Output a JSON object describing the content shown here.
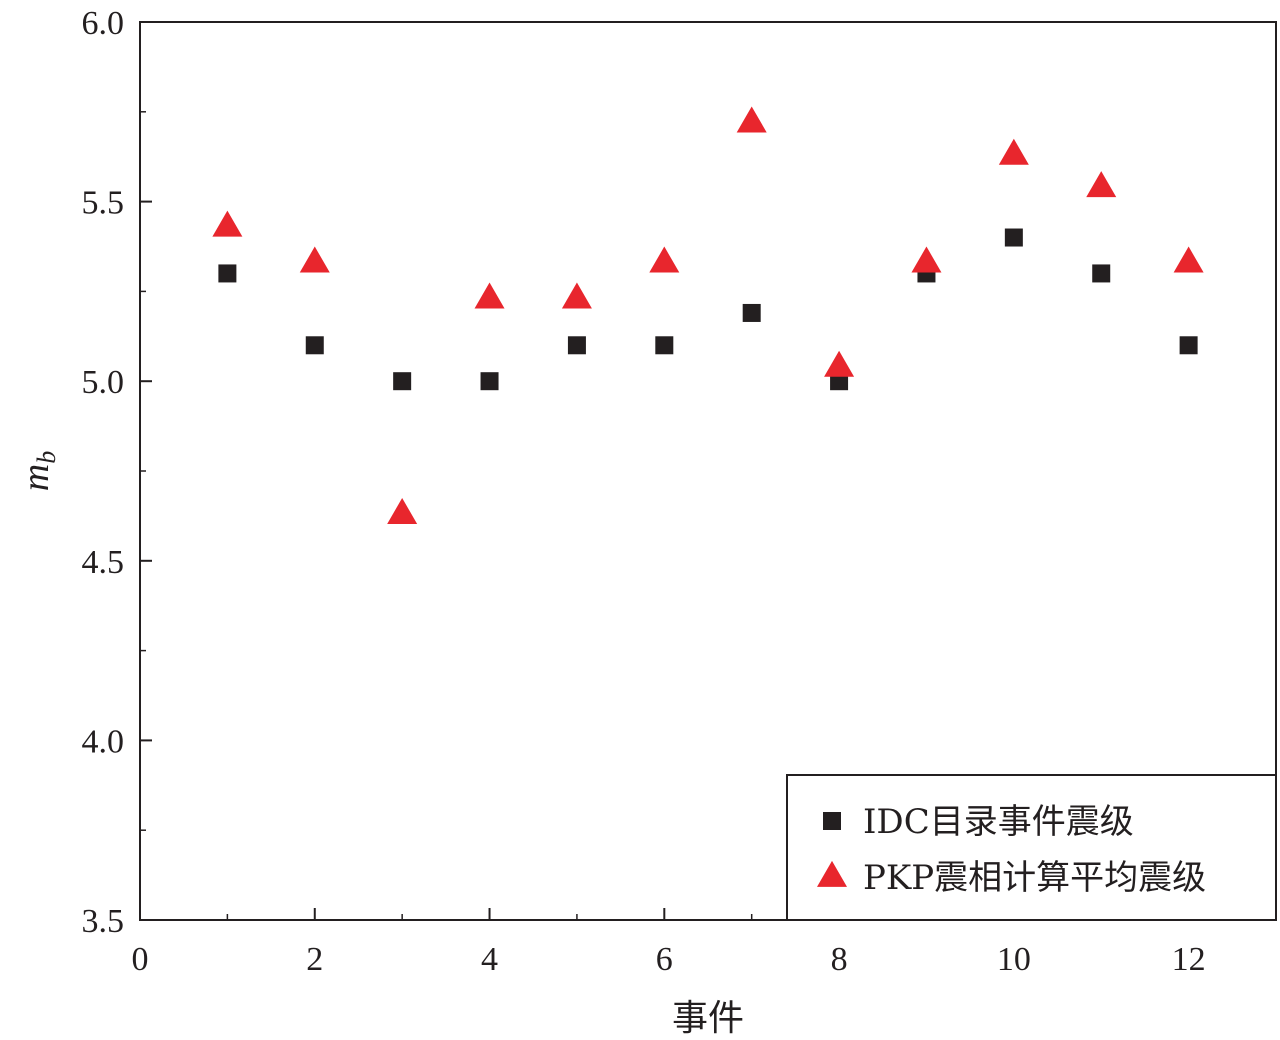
{
  "chart_data": {
    "type": "scatter",
    "title": "",
    "xlabel": "事件",
    "ylabel": {
      "main": "m",
      "sub": "b"
    },
    "xlim": [
      0,
      13
    ],
    "ylim": [
      3.5,
      6.0
    ],
    "xticks": [
      "0",
      "2",
      "4",
      "6",
      "8",
      "10",
      "12"
    ],
    "yticks": [
      "3.5",
      "4.0",
      "4.5",
      "5.0",
      "5.5",
      "6.0"
    ],
    "grid": false,
    "legend_position": "bottom-right",
    "series": [
      {
        "name": "IDC目录事件震级",
        "marker": "square",
        "color": "#231f20",
        "x": [
          1,
          2,
          3,
          4,
          5,
          6,
          7,
          8,
          9,
          10,
          11,
          12
        ],
        "y": [
          5.3,
          5.1,
          5.0,
          5.0,
          5.1,
          5.1,
          5.19,
          5.0,
          5.3,
          5.4,
          5.3,
          5.1
        ]
      },
      {
        "name": "PKP震相计算平均震级",
        "marker": "triangle",
        "color": "#e8262d",
        "x": [
          1,
          2,
          3,
          4,
          5,
          6,
          7,
          8,
          9,
          10,
          11,
          12
        ],
        "y": [
          5.43,
          5.33,
          4.63,
          5.23,
          5.23,
          5.33,
          5.72,
          5.04,
          5.33,
          5.63,
          5.54,
          5.33
        ]
      }
    ]
  }
}
